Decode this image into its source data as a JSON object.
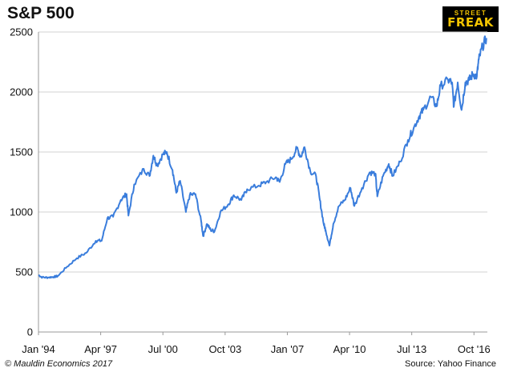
{
  "logo": {
    "line1": "STREET",
    "line2": "FREAK"
  },
  "footer": {
    "copyright": "© Mauldin Economics 2017",
    "source": "Source: Yahoo Finance"
  },
  "colors": {
    "line": "#3a7ddc",
    "grid": "#d0d0d0",
    "axis": "#999999"
  },
  "chart_data": {
    "type": "line",
    "title": "S&P 500",
    "xlabel": "",
    "ylabel": "",
    "ylim": [
      0,
      2500
    ],
    "xlim": [
      1994.0,
      2017.45
    ],
    "yticks": [
      0,
      500,
      1000,
      1500,
      2000,
      2500
    ],
    "xticks": [
      {
        "value": 1994.0,
        "label": "Jan '94"
      },
      {
        "value": 1997.25,
        "label": "Apr '97"
      },
      {
        "value": 2000.5,
        "label": "Jul '00"
      },
      {
        "value": 2003.75,
        "label": "Oct '03"
      },
      {
        "value": 2007.0,
        "label": "Jan '07"
      },
      {
        "value": 2010.25,
        "label": "Apr '10"
      },
      {
        "value": 2013.5,
        "label": "Jul '13"
      },
      {
        "value": 2016.75,
        "label": "Oct '16"
      }
    ],
    "series": [
      {
        "name": "S&P 500",
        "points": [
          [
            1994.0,
            475
          ],
          [
            1994.2,
            455
          ],
          [
            1994.5,
            455
          ],
          [
            1994.8,
            460
          ],
          [
            1995.0,
            465
          ],
          [
            1995.5,
            545
          ],
          [
            1996.0,
            615
          ],
          [
            1996.5,
            660
          ],
          [
            1997.0,
            760
          ],
          [
            1997.3,
            760
          ],
          [
            1997.6,
            950
          ],
          [
            1997.9,
            960
          ],
          [
            1998.3,
            1100
          ],
          [
            1998.6,
            1150
          ],
          [
            1998.7,
            970
          ],
          [
            1999.0,
            1230
          ],
          [
            1999.5,
            1360
          ],
          [
            1999.8,
            1300
          ],
          [
            2000.0,
            1470
          ],
          [
            2000.2,
            1390
          ],
          [
            2000.5,
            1480
          ],
          [
            2000.7,
            1500
          ],
          [
            2001.0,
            1350
          ],
          [
            2001.2,
            1160
          ],
          [
            2001.4,
            1260
          ],
          [
            2001.7,
            1000
          ],
          [
            2001.9,
            1140
          ],
          [
            2002.2,
            1150
          ],
          [
            2002.5,
            920
          ],
          [
            2002.6,
            800
          ],
          [
            2002.8,
            900
          ],
          [
            2003.0,
            850
          ],
          [
            2003.2,
            840
          ],
          [
            2003.5,
            1000
          ],
          [
            2003.9,
            1060
          ],
          [
            2004.2,
            1140
          ],
          [
            2004.6,
            1100
          ],
          [
            2004.9,
            1190
          ],
          [
            2005.5,
            1220
          ],
          [
            2005.9,
            1250
          ],
          [
            2006.4,
            1290
          ],
          [
            2006.6,
            1250
          ],
          [
            2006.9,
            1400
          ],
          [
            2007.2,
            1440
          ],
          [
            2007.5,
            1530
          ],
          [
            2007.7,
            1460
          ],
          [
            2007.9,
            1540
          ],
          [
            2008.2,
            1340
          ],
          [
            2008.5,
            1300
          ],
          [
            2008.7,
            1100
          ],
          [
            2008.9,
            900
          ],
          [
            2009.0,
            850
          ],
          [
            2009.2,
            720
          ],
          [
            2009.4,
            900
          ],
          [
            2009.7,
            1050
          ],
          [
            2010.0,
            1100
          ],
          [
            2010.3,
            1200
          ],
          [
            2010.5,
            1050
          ],
          [
            2010.9,
            1200
          ],
          [
            2011.3,
            1330
          ],
          [
            2011.6,
            1320
          ],
          [
            2011.7,
            1130
          ],
          [
            2012.0,
            1300
          ],
          [
            2012.3,
            1400
          ],
          [
            2012.5,
            1300
          ],
          [
            2012.9,
            1420
          ],
          [
            2013.3,
            1600
          ],
          [
            2013.6,
            1700
          ],
          [
            2013.9,
            1800
          ],
          [
            2014.1,
            1850
          ],
          [
            2014.5,
            1960
          ],
          [
            2014.8,
            1880
          ],
          [
            2015.0,
            2050
          ],
          [
            2015.4,
            2100
          ],
          [
            2015.6,
            2080
          ],
          [
            2015.7,
            1880
          ],
          [
            2015.9,
            2080
          ],
          [
            2016.1,
            1850
          ],
          [
            2016.3,
            2080
          ],
          [
            2016.5,
            2100
          ],
          [
            2016.7,
            2150
          ],
          [
            2016.9,
            2130
          ],
          [
            2017.0,
            2270
          ],
          [
            2017.2,
            2380
          ],
          [
            2017.4,
            2450
          ]
        ]
      }
    ]
  }
}
